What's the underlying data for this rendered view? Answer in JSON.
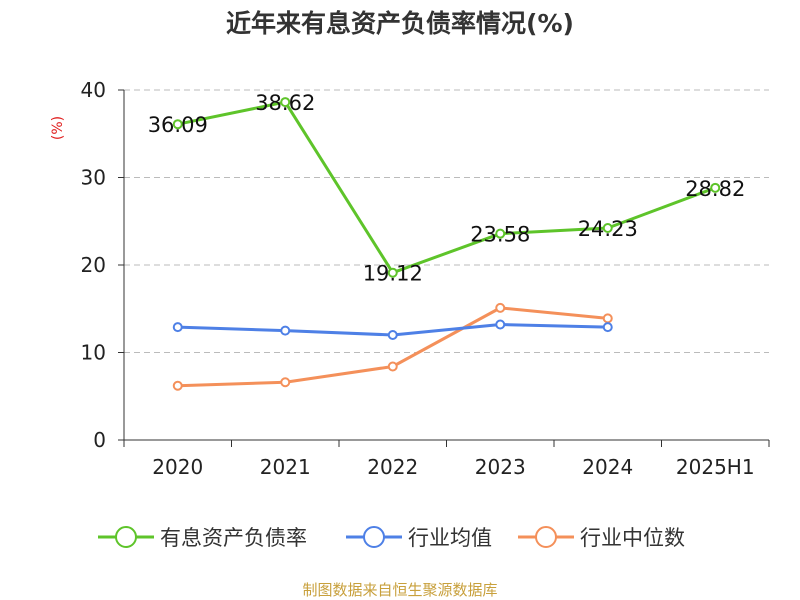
{
  "chart_data": {
    "type": "line",
    "title": "近年来有息资产负债率情况(%)",
    "ylabel": "(%)",
    "xlabel": "",
    "categories": [
      "2020",
      "2021",
      "2022",
      "2023",
      "2024",
      "2025H1"
    ],
    "ylim": [
      0,
      40
    ],
    "yticks": [
      0,
      10,
      20,
      30,
      40
    ],
    "grid": true,
    "legend_position": "bottom",
    "series": [
      {
        "name": "有息资产负债率",
        "color": "#5ec42a",
        "values": [
          36.09,
          38.62,
          19.12,
          23.58,
          24.23,
          28.82
        ],
        "data_labels": [
          "36.09",
          "38.62",
          "19.12",
          "23.58",
          "24.23",
          "28.82"
        ]
      },
      {
        "name": "行业均值",
        "color": "#4e80e6",
        "values": [
          12.9,
          12.5,
          12.0,
          13.2,
          12.9,
          null
        ]
      },
      {
        "name": "行业中位数",
        "color": "#f4905a",
        "values": [
          6.2,
          6.6,
          8.4,
          15.1,
          13.9,
          null
        ]
      }
    ],
    "source": "制图数据来自恒生聚源数据库",
    "source_color": "#c8a03c",
    "ylabel_color": "#e02020"
  }
}
